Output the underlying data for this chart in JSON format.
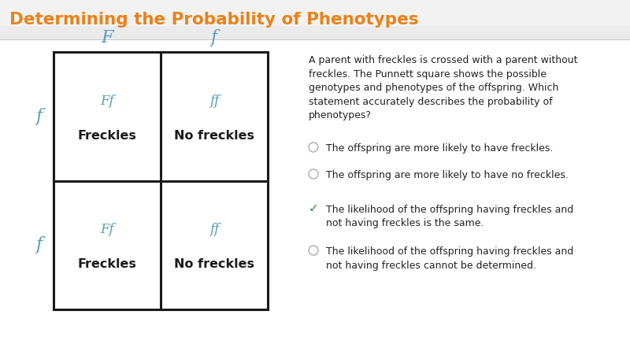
{
  "title": "Determining the Probability of Phenotypes",
  "title_color": "#E8821A",
  "title_bg_color": "#EEEEEE",
  "bg_color": "#FFFFFF",
  "punnett": {
    "col_headers": [
      "F",
      "f"
    ],
    "row_headers": [
      "f",
      "f"
    ],
    "header_color": "#5B9DB8",
    "cells": [
      [
        {
          "genotype": "Ff",
          "phenotype": "Freckles"
        },
        {
          "genotype": "ff",
          "phenotype": "No freckles"
        }
      ],
      [
        {
          "genotype": "Ff",
          "phenotype": "Freckles"
        },
        {
          "genotype": "ff",
          "phenotype": "No freckles"
        }
      ]
    ],
    "genotype_color": "#5B9DB8",
    "phenotype_color": "#1A1A1A",
    "border_color": "#1A1A1A"
  },
  "question_text": "A parent with freckles is crossed with a parent without\nfreckles. The Punnett square shows the possible\ngenotypes and phenotypes of the offspring. Which\nstatement accurately describes the probability of\nphenotypes?",
  "options": [
    {
      "text": "The offspring are more likely to have freckles.",
      "selected": false,
      "correct": false
    },
    {
      "text": "The offspring are more likely to have no freckles.",
      "selected": false,
      "correct": false
    },
    {
      "text": "The likelihood of the offspring having freckles and\nnot having freckles is the same.",
      "selected": true,
      "correct": true
    },
    {
      "text": "The likelihood of the offspring having freckles and\nnot having freckles cannot be determined.",
      "selected": false,
      "correct": false
    }
  ],
  "option_text_color": "#222222",
  "radio_color": "#AAAAAA",
  "check_color": "#2E8B2E"
}
